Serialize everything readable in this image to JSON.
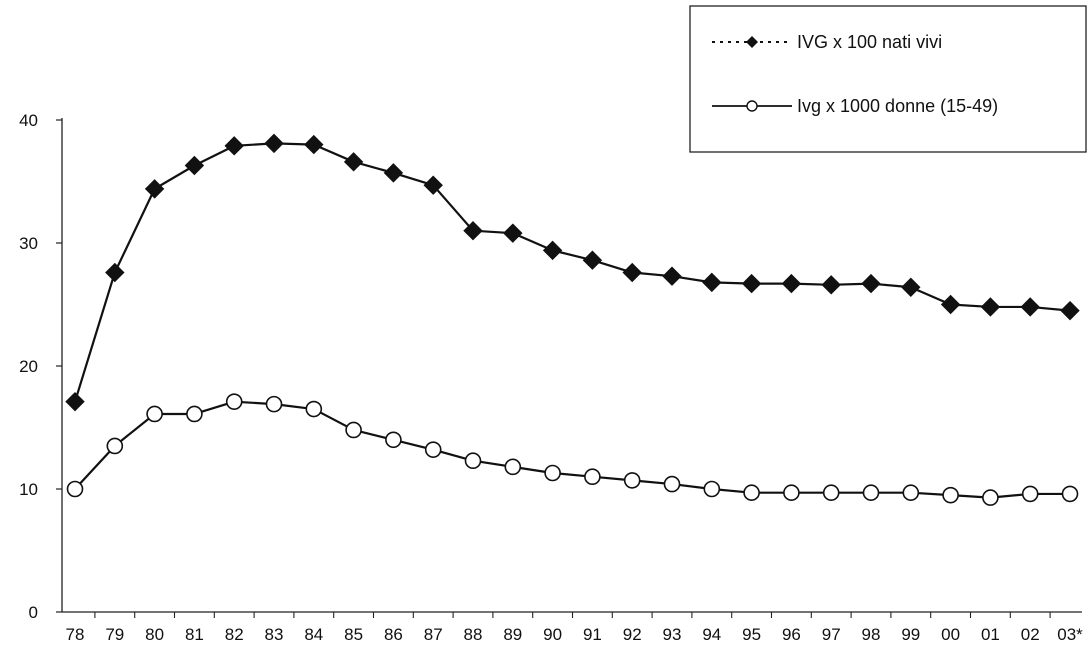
{
  "chart_data": {
    "type": "line",
    "title": "",
    "xlabel": "",
    "ylabel": "",
    "categories": [
      "78",
      "79",
      "80",
      "81",
      "82",
      "83",
      "84",
      "85",
      "86",
      "87",
      "88",
      "89",
      "90",
      "91",
      "92",
      "93",
      "94",
      "95",
      "96",
      "97",
      "98",
      "99",
      "00",
      "01",
      "02",
      "03*"
    ],
    "y_ticks": [
      "0",
      "10",
      "20",
      "30",
      "40"
    ],
    "ylim": [
      0,
      40
    ],
    "grid": false,
    "legend_position": "top-right",
    "series": [
      {
        "name": "IVG x 100 nati vivi",
        "marker": "diamond-filled-icon",
        "line_style": "solid",
        "values": [
          17.1,
          27.6,
          34.4,
          36.3,
          37.9,
          38.1,
          38.0,
          36.6,
          35.7,
          34.7,
          31.0,
          30.8,
          29.4,
          28.6,
          27.6,
          27.3,
          26.8,
          26.7,
          26.7,
          26.6,
          26.7,
          26.4,
          25.0,
          24.8,
          24.8,
          24.5
        ]
      },
      {
        "name": "Ivg x 1000 donne (15-49)",
        "marker": "circle-open-icon",
        "line_style": "solid",
        "values": [
          10.0,
          13.5,
          16.1,
          16.1,
          17.1,
          16.9,
          16.5,
          14.8,
          14.0,
          13.2,
          12.3,
          11.8,
          11.3,
          11.0,
          10.7,
          10.4,
          10.0,
          9.7,
          9.7,
          9.7,
          9.7,
          9.7,
          9.5,
          9.3,
          9.6,
          9.6
        ]
      }
    ],
    "colors": {
      "line": "#111111",
      "marker_fill_open": "#ffffff",
      "axis": "#222222",
      "background": "#ffffff"
    }
  }
}
